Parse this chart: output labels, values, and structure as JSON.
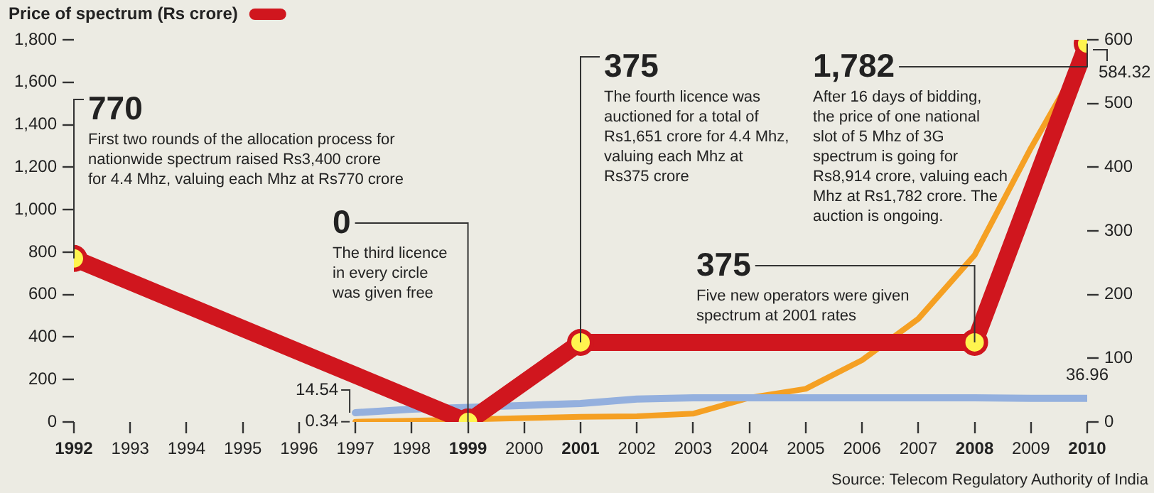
{
  "chart_data": {
    "type": "line",
    "series": [
      {
        "name": "Price of spectrum (Rs crore)",
        "color": "#d0161e",
        "marker": "circle",
        "x": [
          1992,
          1999,
          2001,
          2008,
          2010
        ],
        "values": [
          770,
          0,
          375,
          375,
          1782
        ]
      },
      {
        "color": "#94b0de",
        "axis": "y2",
        "x": [
          1997,
          1998,
          1999,
          2000,
          2001,
          2002,
          2003,
          2004,
          2005,
          2006,
          2007,
          2008,
          2009,
          2010
        ],
        "values": [
          14.54,
          20,
          23,
          26,
          29,
          36,
          38,
          38,
          38,
          38,
          38,
          38,
          37,
          36.96
        ],
        "value_labels": [
          "14.54",
          null,
          null,
          null,
          null,
          null,
          null,
          null,
          null,
          null,
          null,
          null,
          null,
          "36.96"
        ]
      },
      {
        "color": "#f5a023",
        "axis": "y2",
        "x": [
          1997,
          1998,
          1999,
          2000,
          2001,
          2002,
          2003,
          2004,
          2005,
          2006,
          2007,
          2008,
          2009,
          2010
        ],
        "values": [
          0.34,
          2,
          4,
          6,
          8,
          9,
          13,
          38,
          52,
          97,
          162,
          262,
          430,
          584.32
        ],
        "value_labels": [
          "0.34",
          null,
          null,
          null,
          null,
          null,
          null,
          null,
          null,
          null,
          null,
          null,
          null,
          "584.32"
        ]
      }
    ],
    "xlim": [
      1992,
      2010
    ],
    "xticks": [
      1992,
      1993,
      1994,
      1995,
      1996,
      1997,
      1998,
      1999,
      2000,
      2001,
      2002,
      2003,
      2004,
      2005,
      2006,
      2007,
      2008,
      2009,
      2010
    ],
    "ylim": [
      0,
      1800
    ],
    "yticks": [
      0,
      200,
      400,
      600,
      800,
      {
        "value": 1000,
        "label": "1,000"
      },
      {
        "value": 1200,
        "label": "1,200"
      },
      {
        "value": 1400,
        "label": "1,400"
      },
      {
        "value": 1600,
        "label": "1,600"
      },
      {
        "value": 1800,
        "label": "1,800"
      }
    ],
    "y2lim": [
      0,
      600
    ],
    "y2ticks": [
      0,
      100,
      200,
      300,
      400,
      500,
      600
    ],
    "grid": false,
    "legend": "top left",
    "annotations": [
      {
        "text": "770\nFirst two rounds of the allocation process for\nnationwide spectrum raised Rs3,400 crore\nfor 4.4 Mhz, valuing each Mhz at Rs770 crore",
        "x": 1992,
        "y": 770
      },
      {
        "text": "0\nThe third licence\nin every circle\nwas given free",
        "x": 1999,
        "y": 0
      },
      {
        "text": "375\nThe fourth licence was\nauctioned for a total of\nRs1,651 crore for 4.4 Mhz,\nvaluing each Mhz at\nRs375 crore",
        "x": 2001,
        "y": 375
      },
      {
        "text": "375\nFive new operators were given\nspectrum at 2001 rates",
        "x": 2008,
        "y": 375
      },
      {
        "text": "1,782\nAfter 16 days of bidding,\nthe price of one national\nslot of 5 Mhz of 3G\nspectrum is going for\nRs8,914 crore, valuing each\nMhz at Rs1,782 crore. The\nauction is ongoing.",
        "x": 2010,
        "y": 1782
      },
      "Source: Telecom Regulatory Authority of India"
    ]
  }
}
